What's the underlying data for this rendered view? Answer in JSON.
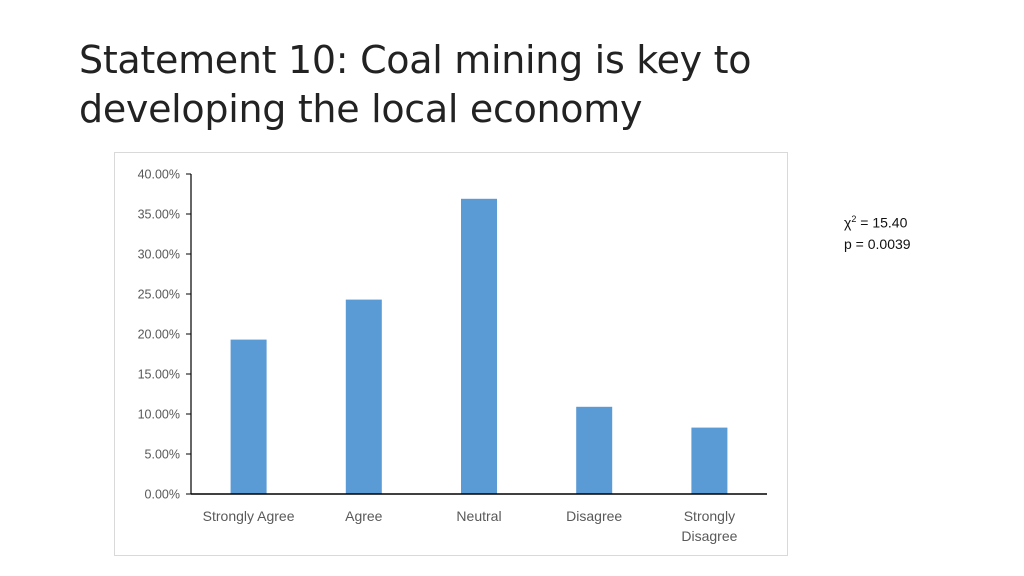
{
  "slide": {
    "title": "Statement 10: Coal mining is key to developing the local economy"
  },
  "stats": {
    "chi_symbol": "χ",
    "chi_superscript": "2",
    "chi_value": " = 15.40",
    "p_line": "p = 0.0039"
  },
  "colors": {
    "bar": "#5b9bd5",
    "axis": "#000000",
    "tick_text": "#595959"
  },
  "chart_data": {
    "type": "bar",
    "categories": [
      "Strongly Agree",
      "Agree",
      "Neutral",
      "Disagree",
      "Strongly Disagree"
    ],
    "values": [
      0.193,
      0.243,
      0.369,
      0.109,
      0.083
    ],
    "yticks": [
      "0.00%",
      "5.00%",
      "10.00%",
      "15.00%",
      "20.00%",
      "25.00%",
      "30.00%",
      "35.00%",
      "40.00%"
    ],
    "ylim": [
      0,
      0.4
    ],
    "title": "",
    "xlabel": "",
    "ylabel": "",
    "grid": false,
    "legend": false
  }
}
